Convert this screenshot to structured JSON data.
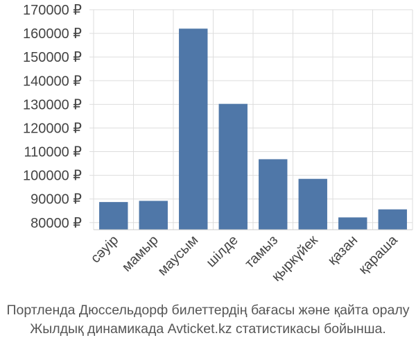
{
  "chart_data": {
    "type": "bar",
    "categories": [
      "сәуір",
      "мамыр",
      "маусым",
      "шілде",
      "тамыз",
      "қыркүйек",
      "қазан",
      "қараша"
    ],
    "values": [
      88700,
      89200,
      162000,
      130200,
      106800,
      98500,
      82200,
      85600
    ],
    "ylim": [
      77000,
      170000
    ],
    "yticks": [
      80000,
      90000,
      100000,
      110000,
      120000,
      130000,
      140000,
      150000,
      160000,
      170000
    ],
    "tick_suffix": " ₽",
    "grid": true,
    "colors": {
      "bar": "#4f77a8",
      "grid": "#dddddd",
      "axis": "#cccccc"
    }
  },
  "caption": {
    "line1": "Портленда Дюссельдорф билеттердің бағасы және қайта оралу",
    "line2": "Жылдық динамикада Avticket.kz статистикасы бойынша."
  }
}
